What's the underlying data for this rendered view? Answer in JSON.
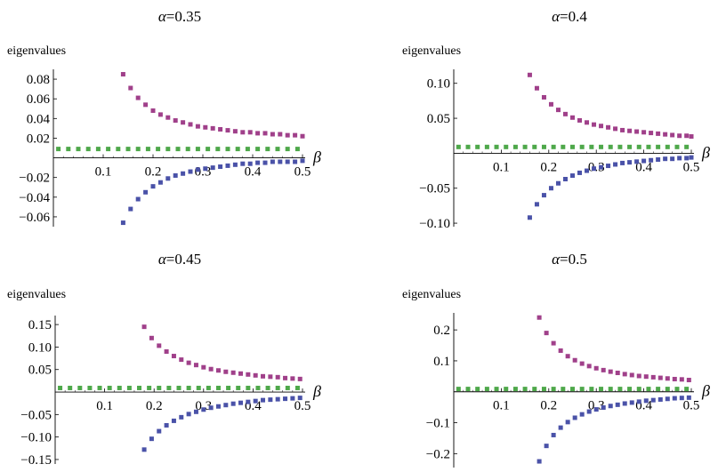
{
  "chart_data": [
    {
      "type": "scatter",
      "title_symbol": "α",
      "title_value": "=0.35",
      "xlabel": "β",
      "ylabel": "eigenvalues",
      "xlim": [
        0,
        0.5
      ],
      "ylim": [
        -0.07,
        0.09
      ],
      "xticks": [
        0.1,
        0.2,
        0.3,
        0.4,
        0.5
      ],
      "xtick_labels": [
        "0.1",
        "0.2",
        "0.3",
        "0.4",
        "0.5"
      ],
      "yticks": [
        -0.06,
        -0.04,
        -0.02,
        0.02,
        0.04,
        0.06,
        0.08
      ],
      "ytick_labels": [
        "−0.06",
        "−0.04",
        "−0.02",
        "0.02",
        "0.04",
        "0.06",
        "0.08"
      ],
      "series": [
        {
          "color": "#a0408a",
          "x": [
            0.14,
            0.155,
            0.17,
            0.185,
            0.2,
            0.215,
            0.23,
            0.245,
            0.26,
            0.275,
            0.29,
            0.305,
            0.32,
            0.335,
            0.35,
            0.365,
            0.38,
            0.395,
            0.41,
            0.425,
            0.44,
            0.455,
            0.47,
            0.485,
            0.5
          ],
          "y": [
            0.085,
            0.071,
            0.061,
            0.054,
            0.048,
            0.044,
            0.041,
            0.038,
            0.036,
            0.034,
            0.032,
            0.031,
            0.03,
            0.029,
            0.028,
            0.027,
            0.026,
            0.026,
            0.025,
            0.025,
            0.024,
            0.024,
            0.023,
            0.023,
            0.022
          ]
        },
        {
          "color": "#4a52a8",
          "x": [
            0.14,
            0.155,
            0.17,
            0.185,
            0.2,
            0.215,
            0.23,
            0.245,
            0.26,
            0.275,
            0.29,
            0.305,
            0.32,
            0.335,
            0.35,
            0.365,
            0.38,
            0.395,
            0.41,
            0.425,
            0.44,
            0.455,
            0.47,
            0.485,
            0.5
          ],
          "y": [
            -0.066,
            -0.052,
            -0.042,
            -0.035,
            -0.029,
            -0.025,
            -0.021,
            -0.018,
            -0.016,
            -0.014,
            -0.012,
            -0.011,
            -0.01,
            -0.009,
            -0.008,
            -0.007,
            -0.006,
            -0.006,
            -0.005,
            -0.005,
            -0.004,
            -0.004,
            -0.004,
            -0.004,
            -0.003
          ]
        },
        {
          "color": "#4ea84a",
          "x": [
            0.01,
            0.03,
            0.05,
            0.07,
            0.09,
            0.11,
            0.13,
            0.15,
            0.17,
            0.19,
            0.21,
            0.23,
            0.25,
            0.27,
            0.29,
            0.31,
            0.33,
            0.35,
            0.37,
            0.39,
            0.41,
            0.43,
            0.45,
            0.47,
            0.49
          ],
          "y": [
            0.009,
            0.009,
            0.009,
            0.009,
            0.009,
            0.009,
            0.009,
            0.009,
            0.009,
            0.009,
            0.009,
            0.009,
            0.009,
            0.009,
            0.009,
            0.009,
            0.009,
            0.009,
            0.009,
            0.009,
            0.009,
            0.009,
            0.009,
            0.009,
            0.009
          ]
        }
      ]
    },
    {
      "type": "scatter",
      "title_symbol": "α",
      "title_value": "=0.4",
      "xlabel": "β",
      "ylabel": "eigenvalues",
      "xlim": [
        0,
        0.5
      ],
      "ylim": [
        -0.105,
        0.12
      ],
      "xticks": [
        0.1,
        0.2,
        0.3,
        0.4,
        0.5
      ],
      "xtick_labels": [
        "0.1",
        "0.2",
        "0.3",
        "0.4",
        "0.5"
      ],
      "yticks": [
        -0.1,
        -0.05,
        0.05,
        0.1
      ],
      "ytick_labels": [
        "−0.10",
        "−0.05",
        "0.05",
        "0.10"
      ],
      "series": [
        {
          "color": "#a0408a",
          "x": [
            0.16,
            0.175,
            0.19,
            0.205,
            0.22,
            0.235,
            0.25,
            0.265,
            0.28,
            0.295,
            0.31,
            0.325,
            0.34,
            0.355,
            0.37,
            0.385,
            0.4,
            0.415,
            0.43,
            0.445,
            0.46,
            0.475,
            0.49,
            0.5
          ],
          "y": [
            0.112,
            0.093,
            0.08,
            0.07,
            0.062,
            0.056,
            0.051,
            0.047,
            0.044,
            0.041,
            0.039,
            0.037,
            0.035,
            0.033,
            0.032,
            0.031,
            0.03,
            0.029,
            0.028,
            0.027,
            0.026,
            0.025,
            0.025,
            0.024
          ]
        },
        {
          "color": "#4a52a8",
          "x": [
            0.16,
            0.175,
            0.19,
            0.205,
            0.22,
            0.235,
            0.25,
            0.265,
            0.28,
            0.295,
            0.31,
            0.325,
            0.34,
            0.355,
            0.37,
            0.385,
            0.4,
            0.415,
            0.43,
            0.445,
            0.46,
            0.475,
            0.49,
            0.5
          ],
          "y": [
            -0.092,
            -0.073,
            -0.06,
            -0.05,
            -0.043,
            -0.037,
            -0.032,
            -0.028,
            -0.025,
            -0.022,
            -0.02,
            -0.018,
            -0.016,
            -0.014,
            -0.013,
            -0.012,
            -0.011,
            -0.01,
            -0.009,
            -0.008,
            -0.008,
            -0.007,
            -0.007,
            -0.006
          ]
        },
        {
          "color": "#4ea84a",
          "x": [
            0.01,
            0.03,
            0.05,
            0.07,
            0.09,
            0.11,
            0.13,
            0.15,
            0.17,
            0.19,
            0.21,
            0.23,
            0.25,
            0.27,
            0.29,
            0.31,
            0.33,
            0.35,
            0.37,
            0.39,
            0.41,
            0.43,
            0.45,
            0.47,
            0.49
          ],
          "y": [
            0.009,
            0.009,
            0.009,
            0.009,
            0.009,
            0.009,
            0.009,
            0.009,
            0.009,
            0.009,
            0.009,
            0.009,
            0.009,
            0.009,
            0.009,
            0.009,
            0.009,
            0.009,
            0.009,
            0.009,
            0.009,
            0.009,
            0.009,
            0.009,
            0.009
          ]
        }
      ]
    },
    {
      "type": "scatter",
      "title_symbol": "α",
      "title_value": "=0.45",
      "xlabel": "β",
      "ylabel": "eigenvalues",
      "xlim": [
        0,
        0.5
      ],
      "ylim": [
        -0.16,
        0.17
      ],
      "xticks": [
        0.1,
        0.2,
        0.3,
        0.4,
        0.5
      ],
      "xtick_labels": [
        "0.1",
        "0.2",
        "0.3",
        "0.4",
        "0.5"
      ],
      "yticks": [
        -0.15,
        -0.1,
        -0.05,
        0.05,
        0.1,
        0.15
      ],
      "ytick_labels": [
        "−0.15",
        "−0.10",
        "−0.05",
        "0.05",
        "0.10",
        "0.15"
      ],
      "series": [
        {
          "color": "#a0408a",
          "x": [
            0.18,
            0.195,
            0.21,
            0.225,
            0.24,
            0.255,
            0.27,
            0.285,
            0.3,
            0.315,
            0.33,
            0.345,
            0.36,
            0.375,
            0.39,
            0.405,
            0.42,
            0.435,
            0.45,
            0.465,
            0.48,
            0.495
          ],
          "y": [
            0.145,
            0.12,
            0.103,
            0.09,
            0.08,
            0.072,
            0.065,
            0.06,
            0.055,
            0.051,
            0.048,
            0.045,
            0.043,
            0.041,
            0.039,
            0.037,
            0.035,
            0.034,
            0.033,
            0.031,
            0.03,
            0.029
          ]
        },
        {
          "color": "#4a52a8",
          "x": [
            0.18,
            0.195,
            0.21,
            0.225,
            0.24,
            0.255,
            0.27,
            0.285,
            0.3,
            0.315,
            0.33,
            0.345,
            0.36,
            0.375,
            0.39,
            0.405,
            0.42,
            0.435,
            0.45,
            0.465,
            0.48,
            0.495
          ],
          "y": [
            -0.128,
            -0.104,
            -0.087,
            -0.074,
            -0.064,
            -0.056,
            -0.049,
            -0.044,
            -0.039,
            -0.035,
            -0.032,
            -0.029,
            -0.026,
            -0.024,
            -0.022,
            -0.02,
            -0.018,
            -0.017,
            -0.016,
            -0.015,
            -0.014,
            -0.013
          ]
        },
        {
          "color": "#4ea84a",
          "x": [
            0.01,
            0.03,
            0.05,
            0.07,
            0.09,
            0.11,
            0.13,
            0.15,
            0.17,
            0.19,
            0.21,
            0.23,
            0.25,
            0.27,
            0.29,
            0.31,
            0.33,
            0.35,
            0.37,
            0.39,
            0.41,
            0.43,
            0.45,
            0.47,
            0.49
          ],
          "y": [
            0.009,
            0.009,
            0.009,
            0.009,
            0.009,
            0.009,
            0.009,
            0.009,
            0.009,
            0.009,
            0.009,
            0.009,
            0.009,
            0.009,
            0.009,
            0.009,
            0.009,
            0.009,
            0.009,
            0.009,
            0.009,
            0.009,
            0.009,
            0.009,
            0.009
          ]
        }
      ]
    },
    {
      "type": "scatter",
      "title_symbol": "α",
      "title_value": "=0.5",
      "xlabel": "β",
      "ylabel": "eigenvalues",
      "xlim": [
        0,
        0.5
      ],
      "ylim": [
        -0.245,
        0.255
      ],
      "xticks": [
        0.1,
        0.2,
        0.3,
        0.4,
        0.5
      ],
      "xtick_labels": [
        "0.1",
        "0.2",
        "0.3",
        "0.4",
        "0.5"
      ],
      "yticks": [
        -0.2,
        -0.1,
        0.1,
        0.2
      ],
      "ytick_labels": [
        "−0.2",
        "−0.1",
        "0.1",
        "0.2"
      ],
      "series": [
        {
          "color": "#a0408a",
          "x": [
            0.18,
            0.195,
            0.21,
            0.225,
            0.24,
            0.255,
            0.27,
            0.285,
            0.3,
            0.315,
            0.33,
            0.345,
            0.36,
            0.375,
            0.39,
            0.405,
            0.42,
            0.435,
            0.45,
            0.465,
            0.48,
            0.495
          ],
          "y": [
            0.24,
            0.19,
            0.157,
            0.133,
            0.115,
            0.102,
            0.091,
            0.083,
            0.076,
            0.07,
            0.065,
            0.061,
            0.057,
            0.054,
            0.051,
            0.049,
            0.047,
            0.045,
            0.043,
            0.041,
            0.04,
            0.038
          ]
        },
        {
          "color": "#4a52a8",
          "x": [
            0.18,
            0.195,
            0.21,
            0.225,
            0.24,
            0.255,
            0.27,
            0.285,
            0.3,
            0.315,
            0.33,
            0.345,
            0.36,
            0.375,
            0.39,
            0.405,
            0.42,
            0.435,
            0.45,
            0.465,
            0.48,
            0.495
          ],
          "y": [
            -0.225,
            -0.175,
            -0.14,
            -0.116,
            -0.098,
            -0.084,
            -0.073,
            -0.064,
            -0.057,
            -0.051,
            -0.046,
            -0.042,
            -0.038,
            -0.035,
            -0.032,
            -0.029,
            -0.027,
            -0.025,
            -0.023,
            -0.021,
            -0.02,
            -0.019
          ]
        },
        {
          "color": "#4ea84a",
          "x": [
            0.01,
            0.03,
            0.05,
            0.07,
            0.09,
            0.11,
            0.13,
            0.15,
            0.17,
            0.19,
            0.21,
            0.23,
            0.25,
            0.27,
            0.29,
            0.31,
            0.33,
            0.35,
            0.37,
            0.39,
            0.41,
            0.43,
            0.45,
            0.47,
            0.49
          ],
          "y": [
            0.009,
            0.009,
            0.009,
            0.009,
            0.009,
            0.009,
            0.009,
            0.009,
            0.009,
            0.009,
            0.009,
            0.009,
            0.009,
            0.009,
            0.009,
            0.009,
            0.009,
            0.009,
            0.009,
            0.009,
            0.009,
            0.009,
            0.009,
            0.009,
            0.009
          ]
        }
      ]
    }
  ]
}
